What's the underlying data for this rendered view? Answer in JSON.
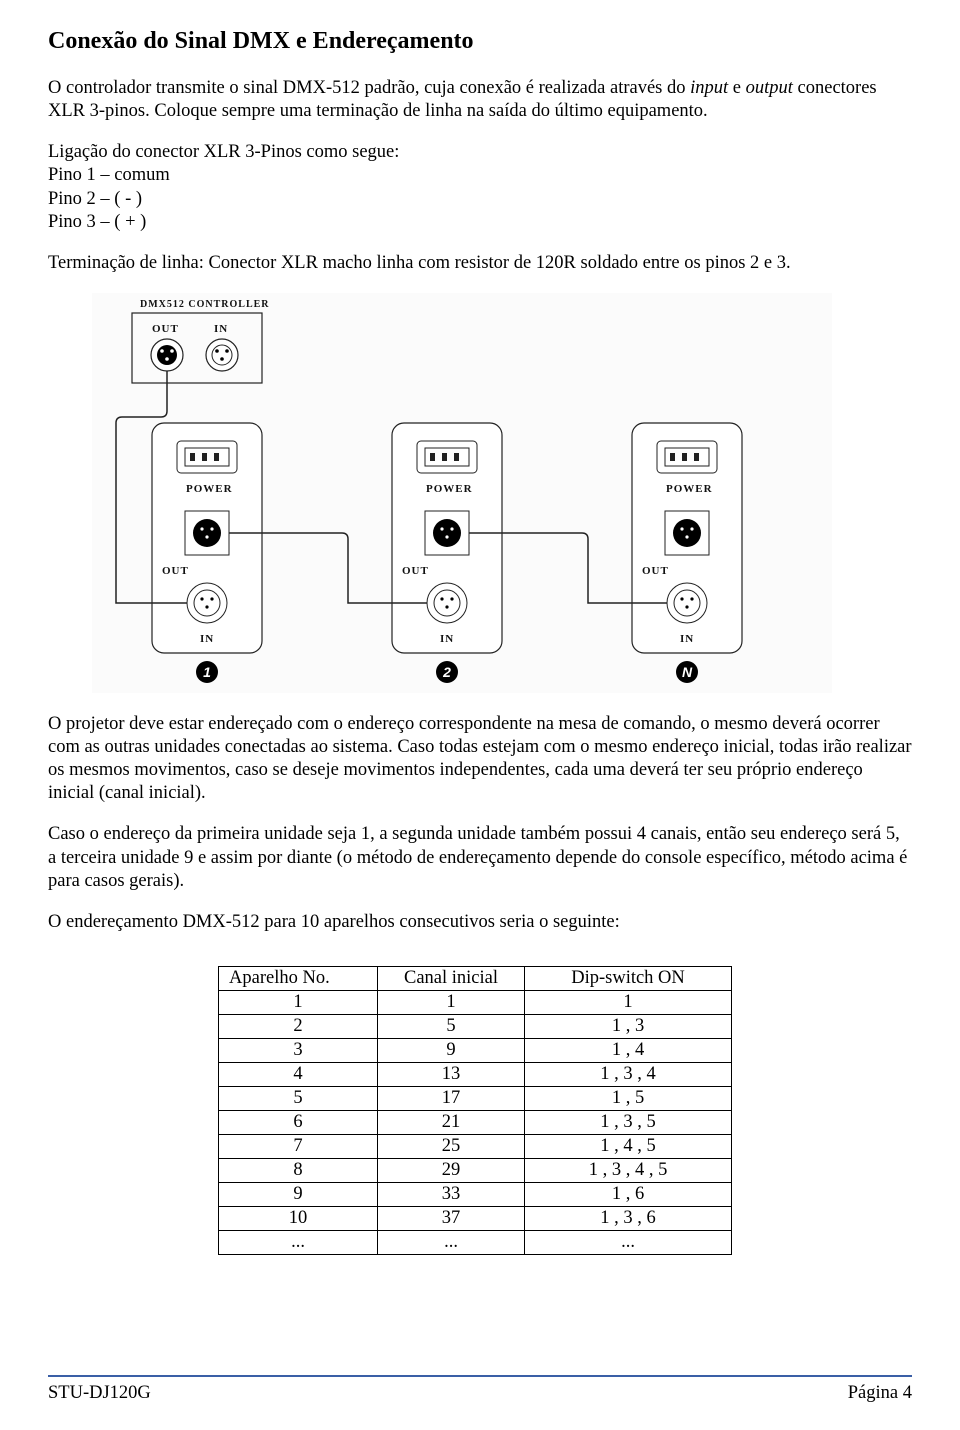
{
  "title": "Conexão do Sinal DMX e Endereçamento",
  "para1_a": "O controlador transmite o sinal DMX-512 padrão, cuja conexão é realizada através do ",
  "para1_italic1": "input",
  "para1_b": " e ",
  "para1_italic2": "output",
  "para1_c": " conectores XLR 3-pinos. Coloque sempre uma terminação de linha na saída do último equipamento.",
  "pin_intro": "Ligação do conector XLR 3-Pinos como segue:",
  "pin1": "Pino 1 – comum",
  "pin2": "Pino 2 – ( - )",
  "pin3": "Pino 3 – ( + )",
  "termination": "Terminação de linha: Conector XLR macho linha com resistor de 120R soldado entre os pinos 2 e 3.",
  "diagram": {
    "controller_label": "DMX512 CONTROLLER",
    "out_label": "OUT",
    "in_label": "IN",
    "power_label": "POWER",
    "badge1": "1",
    "badge2": "2",
    "badge3": "N",
    "colors": {
      "bg": "#fbfbfb",
      "line": "#222222",
      "fill_light": "#ffffff",
      "fill_dark": "#000000"
    }
  },
  "para2": "O projetor deve estar endereçado com o endereço correspondente na mesa de comando, o mesmo deverá ocorrer com as outras unidades conectadas ao sistema. Caso todas estejam com o mesmo endereço inicial, todas irão realizar os mesmos movimentos, caso se deseje movimentos independentes, cada uma deverá ter seu próprio endereço inicial (canal inicial).",
  "para3": "Caso o endereço da primeira unidade seja 1, a segunda unidade também possui 4 canais, então seu  endereço será 5, a terceira unidade  9 e assim por diante (o método de endereçamento depende do console específico, método acima é para casos gerais).",
  "para4": "O endereçamento DMX-512 para 10 aparelhos consecutivos seria o seguinte:",
  "table": {
    "headers": [
      "Aparelho No.",
      "Canal inicial",
      "Dip-switch ON"
    ],
    "rows": [
      [
        "1",
        "1",
        "1"
      ],
      [
        "2",
        "5",
        "1 , 3"
      ],
      [
        "3",
        "9",
        "1 , 4"
      ],
      [
        "4",
        "13",
        "1 , 3 , 4"
      ],
      [
        "5",
        "17",
        "1 , 5"
      ],
      [
        "6",
        "21",
        "1 , 3 , 5"
      ],
      [
        "7",
        "25",
        "1 , 4 , 5"
      ],
      [
        "8",
        "29",
        "1 , 3 , 4 , 5"
      ],
      [
        "9",
        "33",
        "1 , 6"
      ],
      [
        "10",
        "37",
        "1 , 3 , 6"
      ],
      [
        "...",
        "...",
        "..."
      ]
    ]
  },
  "footer": {
    "left": "STU-DJ120G",
    "right": "Página 4",
    "rule_color": "#3a5fa6"
  }
}
